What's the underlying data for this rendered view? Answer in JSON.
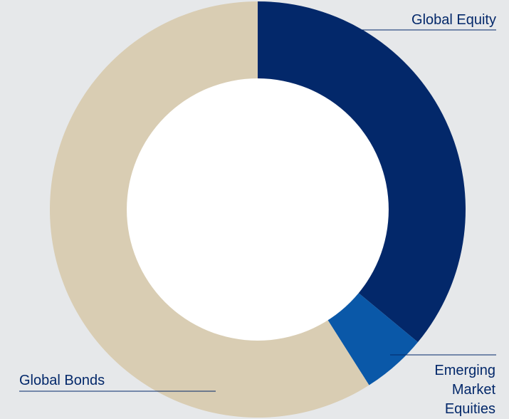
{
  "chart_data": {
    "type": "pie",
    "title": "",
    "categories": [
      "Global Equity",
      "Emerging Market Equities",
      "Global Bonds"
    ],
    "values": [
      36,
      5,
      59
    ],
    "colors": [
      "#03286a",
      "#0a58a8",
      "#d9cdb3"
    ],
    "inner_radius_ratio": 0.63,
    "label_color": "#03286a",
    "labels": {
      "global_equity": "Global Equity",
      "emerging_line1": "Emerging",
      "emerging_line2": "Market",
      "emerging_line3": "Equities",
      "global_bonds": "Global Bonds"
    }
  }
}
